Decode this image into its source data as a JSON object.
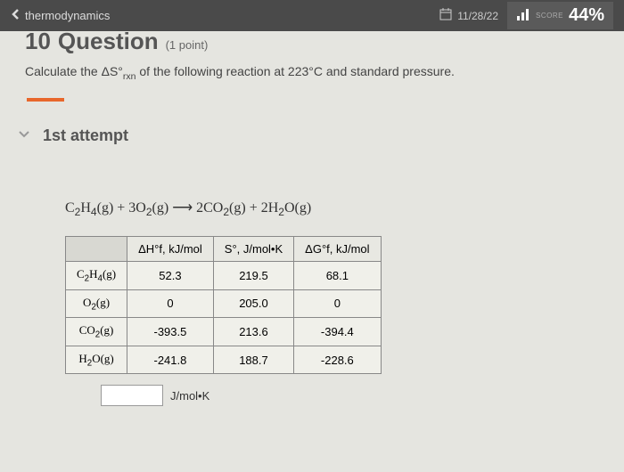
{
  "topbar": {
    "back_label": "thermodynamics",
    "date": "11/28/22",
    "score_label": "SCORE",
    "score_value": "44%"
  },
  "question": {
    "number": "10",
    "title": "Question",
    "points": "(1 point)",
    "prompt_prefix": "Calculate the ΔS°",
    "prompt_sub": "rxn",
    "prompt_suffix": " of the following reaction at 223°C and standard pressure."
  },
  "attempt": {
    "title": "1st attempt"
  },
  "equation": {
    "html": "C<sub>2</sub>H<sub>4</sub>(g) + 3O<sub>2</sub>(g) ⟶ 2CO<sub>2</sub>(g) + 2H<sub>2</sub>O(g)"
  },
  "table": {
    "headers": [
      "ΔH°f, kJ/mol",
      "S°, J/mol•K",
      "ΔG°f, kJ/mol"
    ],
    "rows": [
      {
        "species": "C<sub>2</sub>H<sub>4</sub>(g)",
        "dh": "52.3",
        "s": "219.5",
        "dg": "68.1"
      },
      {
        "species": "O<sub>2</sub>(g)",
        "dh": "0",
        "s": "205.0",
        "dg": "0"
      },
      {
        "species": "CO<sub>2</sub>(g)",
        "dh": "-393.5",
        "s": "213.6",
        "dg": "-394.4"
      },
      {
        "species": "H<sub>2</sub>O(g)",
        "dh": "-241.8",
        "s": "188.7",
        "dg": "-228.6"
      }
    ]
  },
  "answer": {
    "value": "",
    "unit": "J/mol•K"
  },
  "colors": {
    "topbar_bg": "#4a4a4a",
    "body_bg": "#e5e5e0",
    "accent": "#e8672c",
    "text": "#444"
  }
}
